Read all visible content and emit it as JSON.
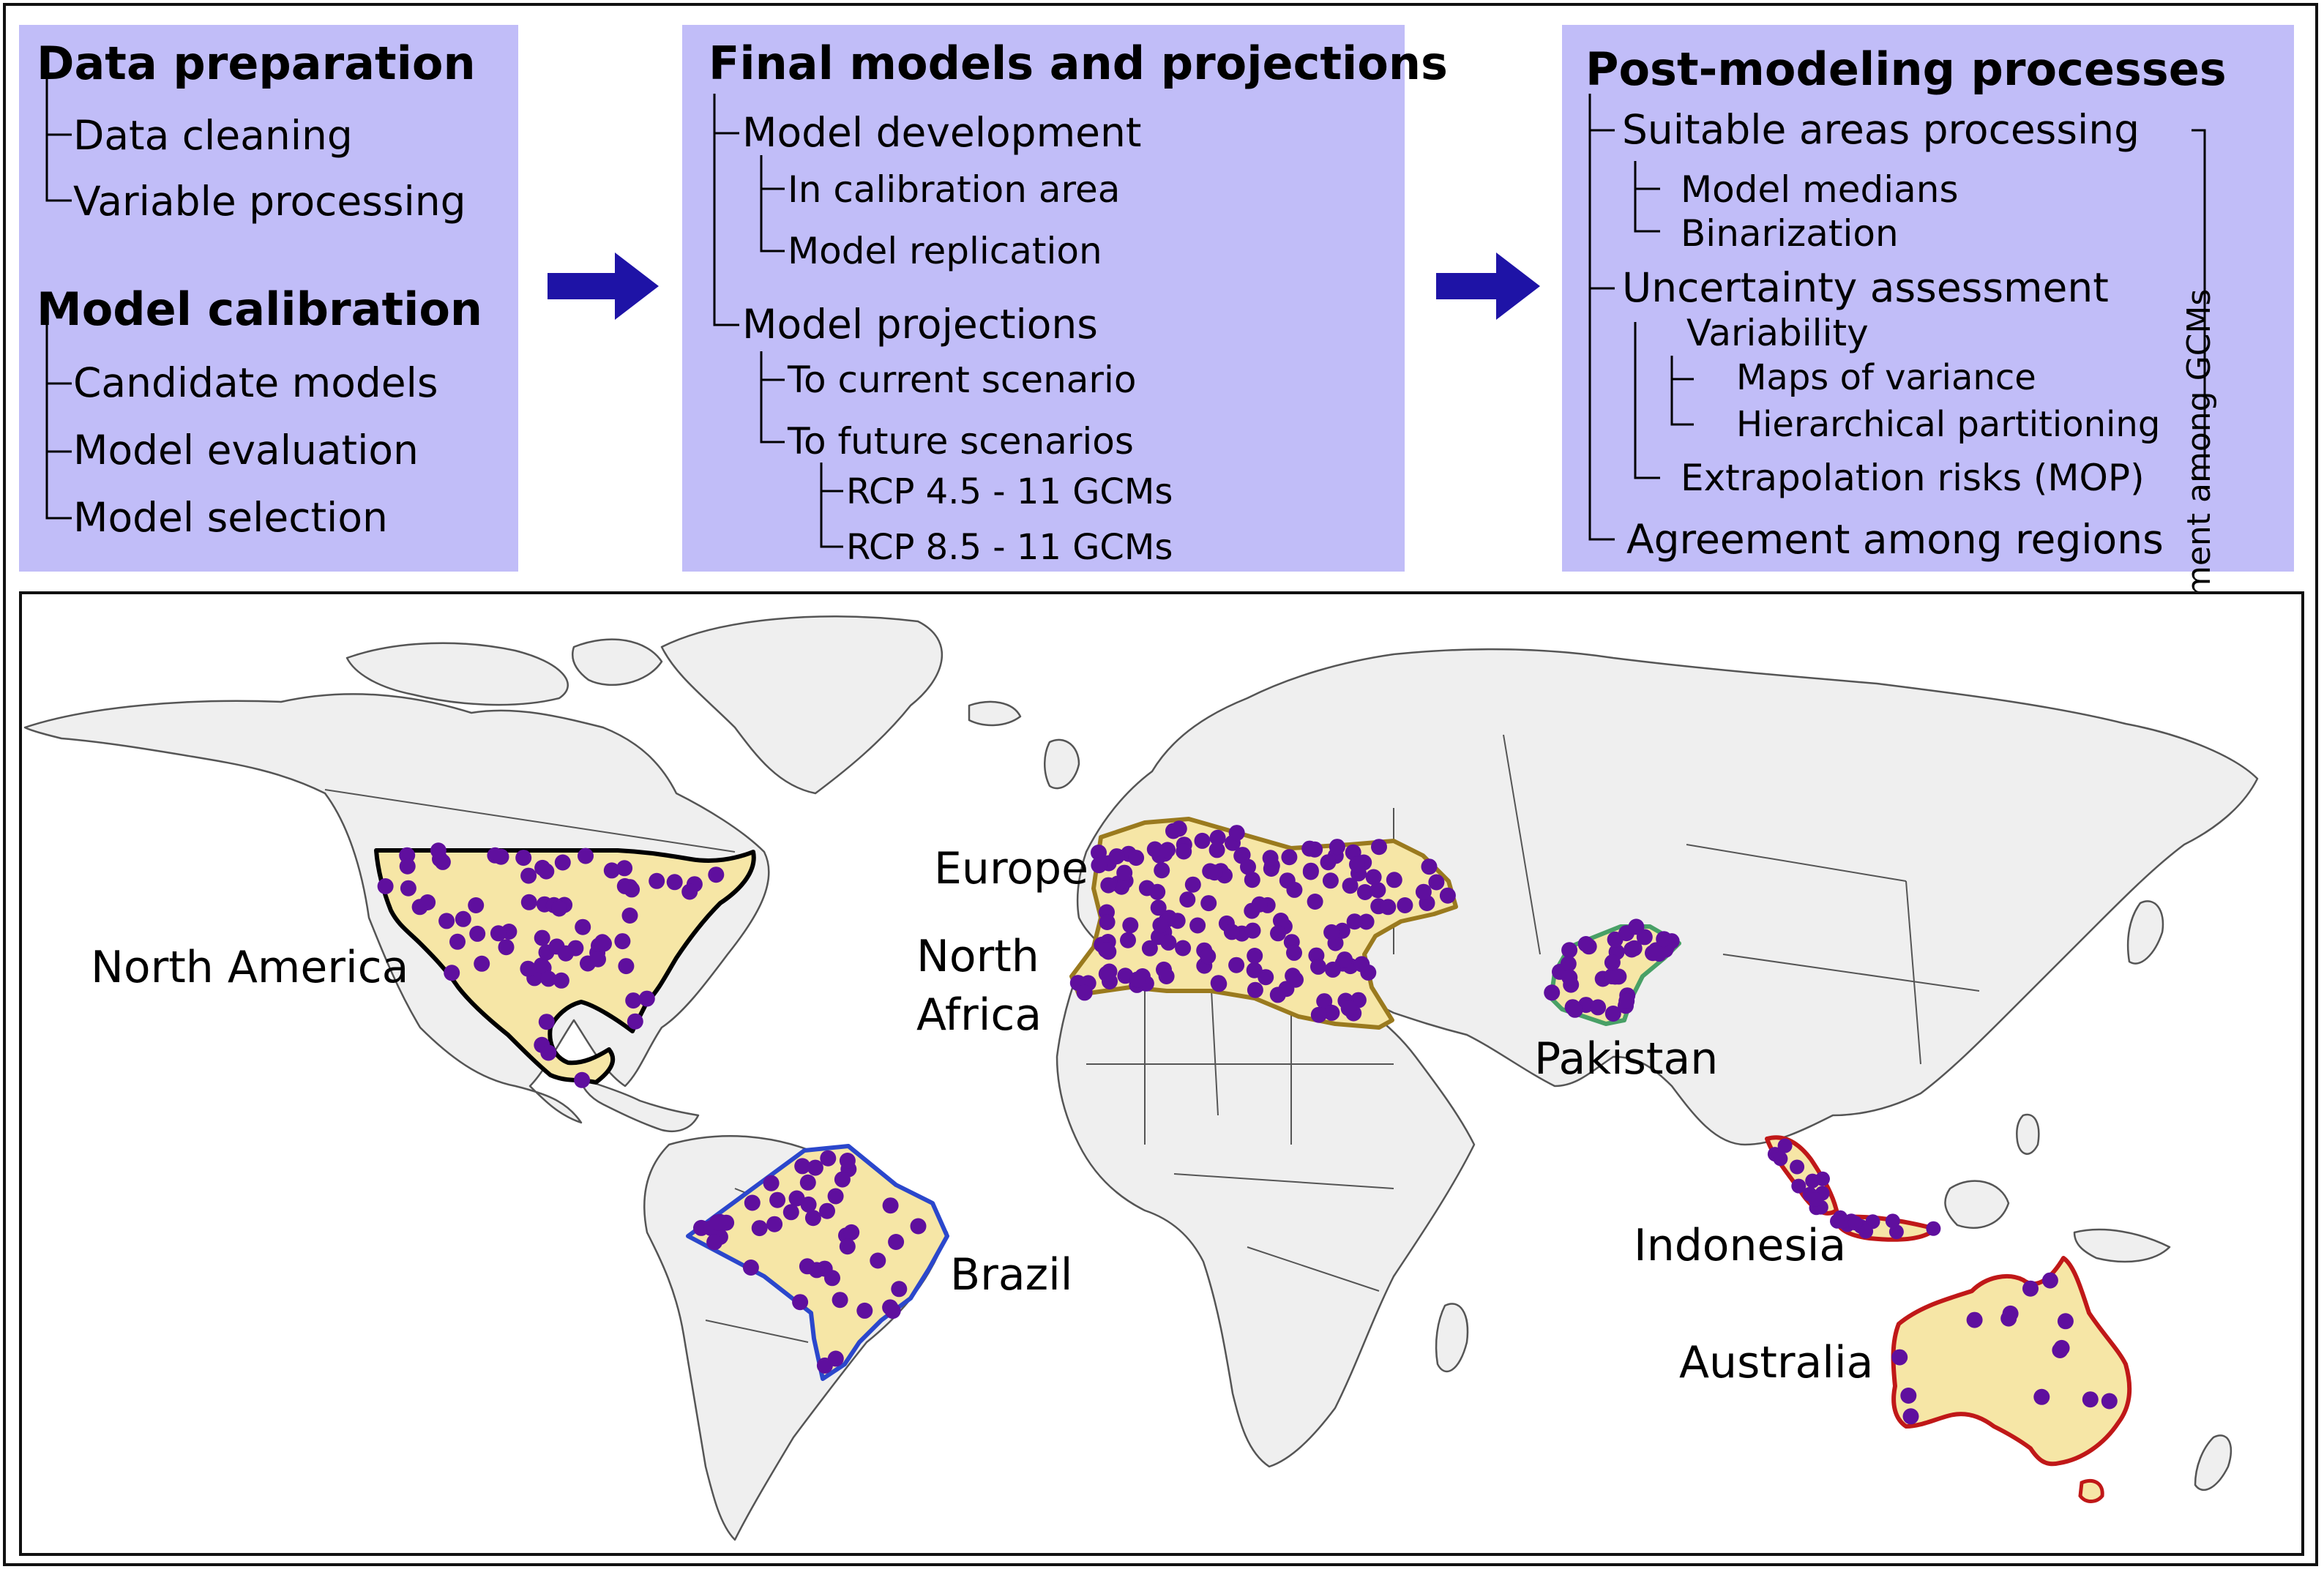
{
  "panels": {
    "left": {
      "title1": "Data preparation",
      "items1": [
        "Data cleaning",
        "Variable processing"
      ],
      "title2": "Model calibration",
      "items2": [
        "Candidate models",
        "Model evaluation",
        "Model selection"
      ]
    },
    "middle": {
      "title": "Final models and projections",
      "development": "Model development",
      "development_items": [
        "In calibration area",
        "Model replication"
      ],
      "projections": "Model projections",
      "current": "To current scenario",
      "future": "To future scenarios",
      "future_items": [
        "RCP 4.5 - 11 GCMs",
        "RCP 8.5 - 11 GCMs"
      ]
    },
    "right": {
      "title": "Post-modeling processes",
      "suitable": "Suitable areas processing",
      "suitable_items": [
        "Model medians",
        "Binarization"
      ],
      "uncertainty": "Uncertainty assessment",
      "variability": "Variability",
      "variability_items": [
        "Maps of variance",
        "Hierarchical partitioning"
      ],
      "extrapolation": "Extrapolation risks (MOP)",
      "agreement_regions": "Agreement among regions",
      "agreement_gcms": "Agreement among GCMs"
    }
  },
  "map": {
    "labels": {
      "north_america": "North America",
      "europe": "Europe",
      "north_africa_1": "North",
      "north_africa_2": "Africa",
      "pakistan": "Pakistan",
      "brazil": "Brazil",
      "indonesia": "Indonesia",
      "australia": "Australia"
    }
  },
  "colors": {
    "panel_fill": "#c1bdf8",
    "arrow": "#1e13a6",
    "land": "#efefef",
    "border_line": "#555555",
    "region_fill": "#f6e6a6",
    "points": "#5f0f9e",
    "outline_north_america": "#000000",
    "outline_europe_north_africa": "#9a7a1e",
    "outline_pakistan": "#48a066",
    "outline_brazil": "#2b47cc",
    "outline_indonesia_australia": "#c01818"
  }
}
